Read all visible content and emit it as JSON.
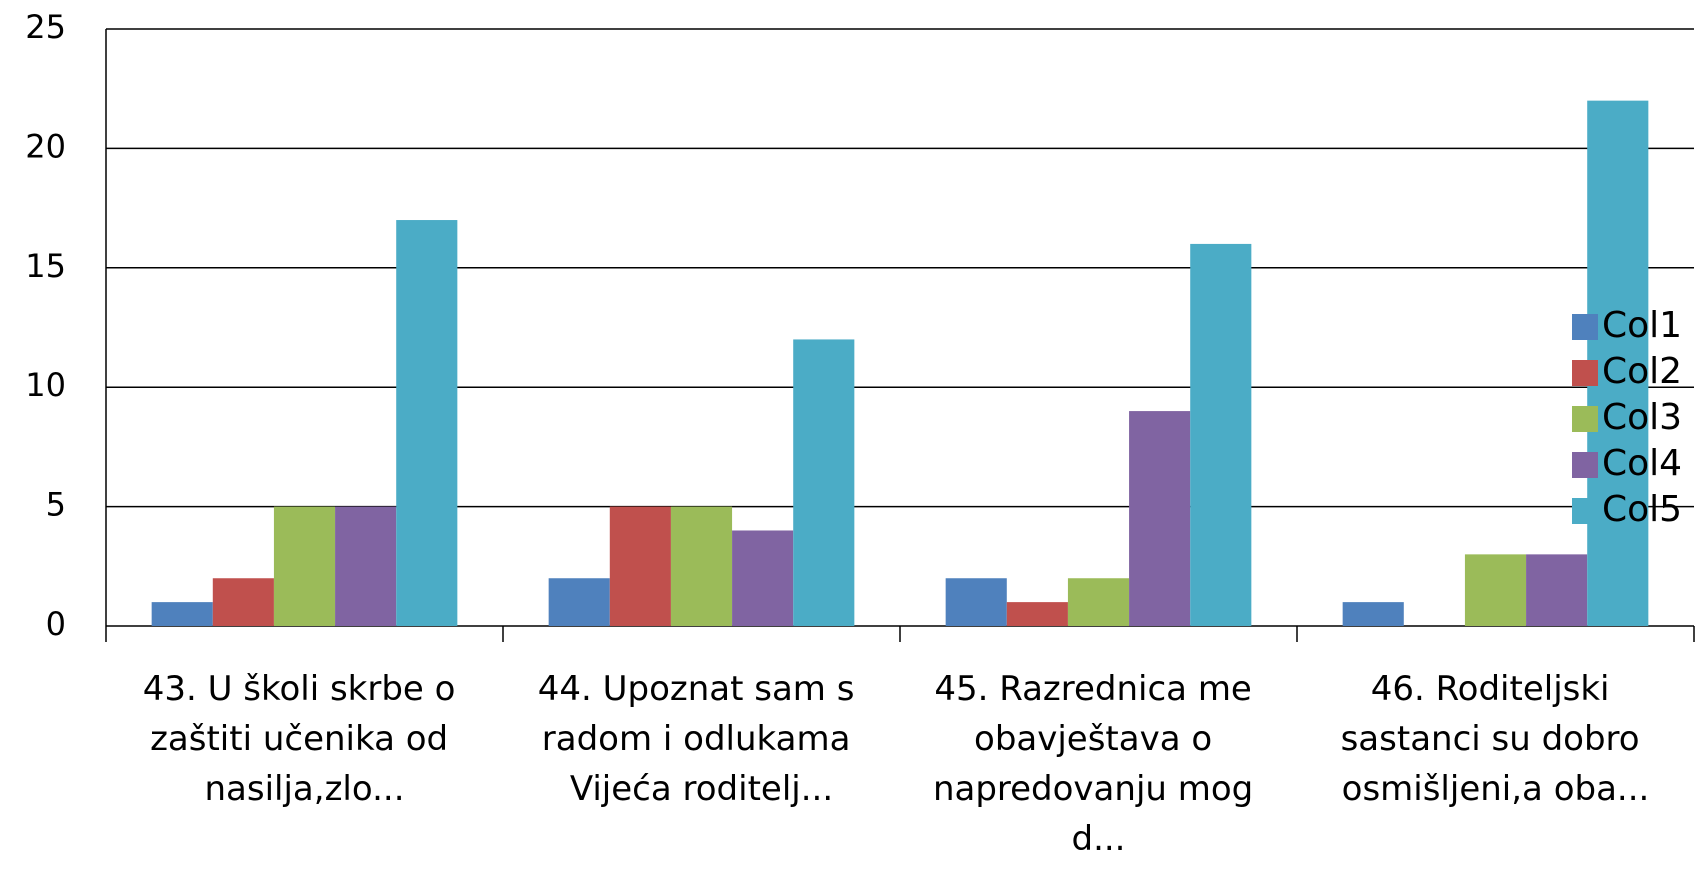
{
  "chart_data": {
    "type": "bar",
    "categories": [
      "43. U školi skrbe o zaštiti učenika od nasilja,zlo...",
      "44. Upoznat sam s radom i odlukama Vijeća roditelj...",
      "45. Razrednica me obavještava o napredovanju mog d...",
      "46. Roditeljski sastanci su dobro osmišljeni,a oba..."
    ],
    "series": [
      {
        "name": "Col1",
        "color": "#4f81bd",
        "values": [
          1,
          2,
          2,
          1
        ]
      },
      {
        "name": "Col2",
        "color": "#c0504d",
        "values": [
          2,
          5,
          1,
          0
        ]
      },
      {
        "name": "Col3",
        "color": "#9bbb59",
        "values": [
          5,
          5,
          2,
          3
        ]
      },
      {
        "name": "Col4",
        "color": "#8064a2",
        "values": [
          5,
          4,
          9,
          3
        ]
      },
      {
        "name": "Col5",
        "color": "#4bacc6",
        "values": [
          17,
          12,
          16,
          22
        ]
      }
    ],
    "ylim": [
      0,
      25
    ],
    "yticks": [
      0,
      5,
      10,
      15,
      20,
      25
    ],
    "grid": true,
    "legend": "right"
  }
}
